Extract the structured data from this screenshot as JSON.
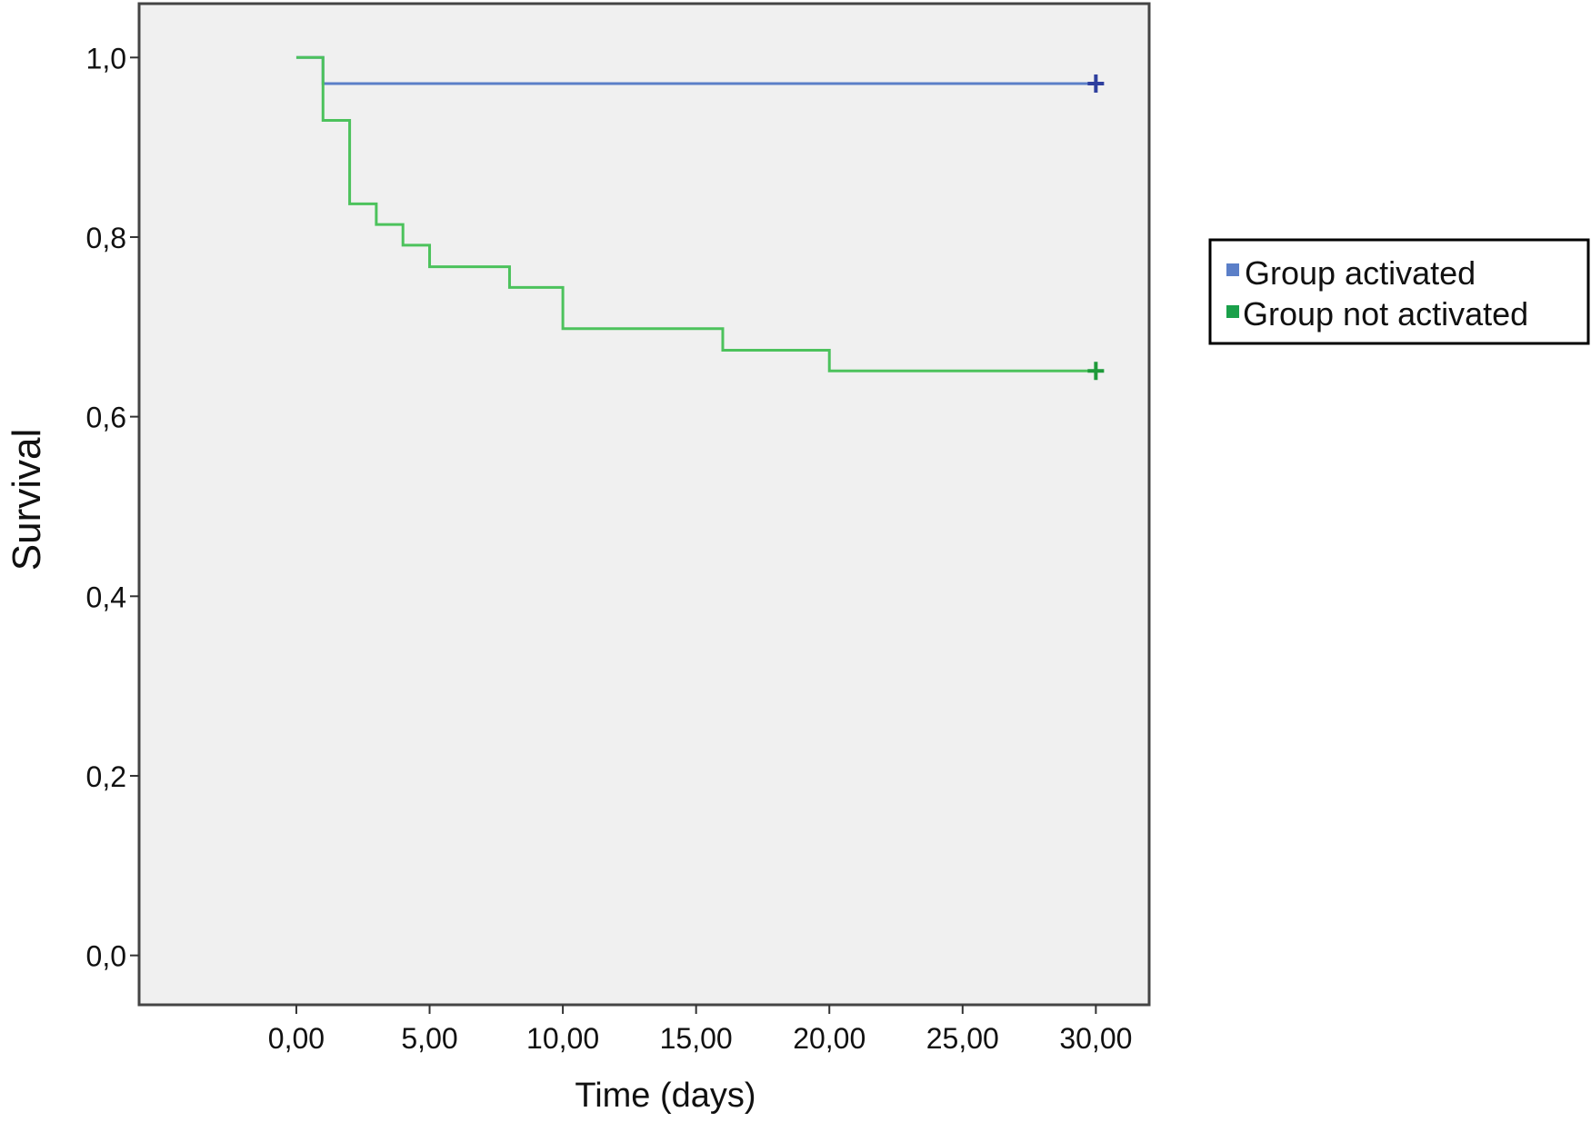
{
  "chart_data": {
    "type": "line",
    "title": "",
    "xlabel": "Time (days)",
    "ylabel": "Survival",
    "xlim": [
      -5.9,
      32
    ],
    "ylim": [
      -0.055,
      1.06
    ],
    "x_ticks": [
      0,
      5,
      10,
      15,
      20,
      25,
      30
    ],
    "x_tick_labels": [
      "0,00",
      "5,00",
      "10,00",
      "15,00",
      "20,00",
      "25,00",
      "30,00"
    ],
    "y_ticks": [
      0,
      0.2,
      0.4,
      0.6,
      0.8,
      1.0
    ],
    "y_tick_labels": [
      "0,0",
      "0,2",
      "0,4",
      "0,6",
      "0,8",
      "1,0"
    ],
    "grid": false,
    "legend_position": "right",
    "step": "post",
    "series": [
      {
        "name": "Group activated",
        "color": "#5b7fc8",
        "censor_color": "#2e3f9e",
        "x": [
          0,
          1,
          30
        ],
        "y": [
          1.0,
          0.971,
          0.971
        ],
        "censored": [
          {
            "x": 30,
            "y": 0.971
          }
        ]
      },
      {
        "name": "Group not activated",
        "color": "#4cc25c",
        "censor_color": "#1e9a3a",
        "x": [
          0,
          1,
          2,
          3,
          4,
          5,
          8,
          10,
          16,
          20,
          30
        ],
        "y": [
          1.0,
          0.93,
          0.837,
          0.814,
          0.791,
          0.767,
          0.744,
          0.698,
          0.674,
          0.651,
          0.651
        ],
        "censored": [
          {
            "x": 30,
            "y": 0.651
          }
        ]
      }
    ],
    "legend": {
      "items": [
        {
          "label": "Group activated",
          "color": "#5b7fc8"
        },
        {
          "label": "Group not activated",
          "color": "#1aa04a"
        }
      ]
    }
  }
}
